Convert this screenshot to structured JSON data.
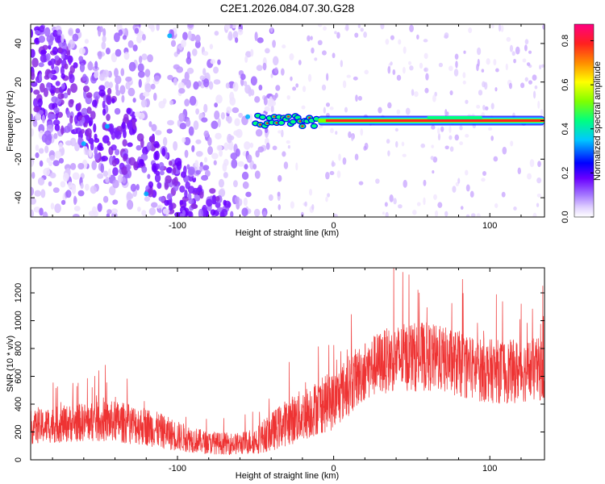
{
  "title": "C2E1.2026.084.07.30.G28",
  "colors": {
    "snr_line": "#ee3333",
    "spectral_cmap": [
      "#ffffff",
      "#e8d8ff",
      "#b58cff",
      "#8a2be2",
      "#6a00ff",
      "#0000ff",
      "#00c8ff",
      "#00ff80",
      "#7fff00",
      "#ffff00",
      "#ff8c00",
      "#ff2020",
      "#ff0080"
    ]
  },
  "chart_data": [
    {
      "type": "heatmap",
      "title": "",
      "xlabel": "Height of straight line (km)",
      "ylabel": "Frequency (Hz)",
      "xlim": [
        -194,
        135
      ],
      "ylim": [
        -50,
        50
      ],
      "xticks": [
        -100,
        0,
        100
      ],
      "xtick_labels": [
        "-100",
        "0",
        "100"
      ],
      "yticks": [
        -40,
        -20,
        0,
        20,
        40
      ],
      "ytick_labels": [
        "-40",
        "-20",
        "0",
        "20",
        "40"
      ],
      "colorbar": {
        "label": "Normalized spectral amplitude",
        "range": [
          0,
          0.875
        ],
        "ticks": [
          0.0,
          0.2,
          0.4,
          0.6,
          0.8
        ],
        "tick_labels": [
          "0.0",
          "0.2",
          "0.4",
          "0.6",
          "0.8"
        ]
      },
      "features": [
        {
          "name": "diffuse-scatter",
          "x_range": [
            -194,
            -40
          ],
          "freq_range": [
            -50,
            50
          ],
          "amplitude": 0.1
        },
        {
          "name": "sparse-scatter",
          "x_range": [
            -40,
            135
          ],
          "freq_range": [
            -50,
            50
          ],
          "amplitude": 0.05
        },
        {
          "name": "signal-ridge",
          "x_range": [
            -50,
            135
          ],
          "freq": 0,
          "amplitude": 0.85
        }
      ]
    },
    {
      "type": "line",
      "title": "",
      "xlabel": "Height of straight line (km)",
      "ylabel": "SNR (10 * v/v)",
      "xlim": [
        -194,
        135
      ],
      "ylim": [
        0,
        1380
      ],
      "xticks": [
        -100,
        0,
        100
      ],
      "xtick_labels": [
        "-100",
        "0",
        "100"
      ],
      "yticks": [
        0,
        200,
        400,
        600,
        800,
        1000,
        1200
      ],
      "ytick_labels": [
        "0",
        "200",
        "400",
        "600",
        "800",
        "1000",
        "1200"
      ],
      "series": [
        {
          "name": "SNR",
          "x": [
            -194,
            -180,
            -160,
            -140,
            -120,
            -100,
            -80,
            -60,
            -50,
            -40,
            -30,
            -20,
            -10,
            0,
            10,
            20,
            30,
            40,
            50,
            60,
            70,
            80,
            90,
            100,
            110,
            120,
            135
          ],
          "mean": [
            230,
            250,
            270,
            275,
            240,
            170,
            120,
            115,
            140,
            200,
            270,
            320,
            380,
            420,
            540,
            640,
            700,
            730,
            740,
            740,
            720,
            690,
            650,
            640,
            630,
            640,
            650
          ],
          "spread": [
            120,
            130,
            140,
            150,
            140,
            110,
            80,
            80,
            100,
            140,
            170,
            190,
            200,
            210,
            220,
            220,
            230,
            240,
            250,
            250,
            240,
            240,
            230,
            230,
            230,
            230,
            230
          ]
        }
      ]
    }
  ]
}
